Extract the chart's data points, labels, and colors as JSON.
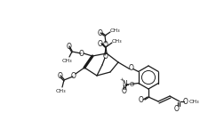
{
  "bg_color": "#ffffff",
  "line_color": "#1a1a1a",
  "lw": 0.9,
  "figsize": [
    2.34,
    1.54
  ],
  "dpi": 100,
  "xlim": [
    0,
    234
  ],
  "ylim": [
    154,
    0
  ]
}
